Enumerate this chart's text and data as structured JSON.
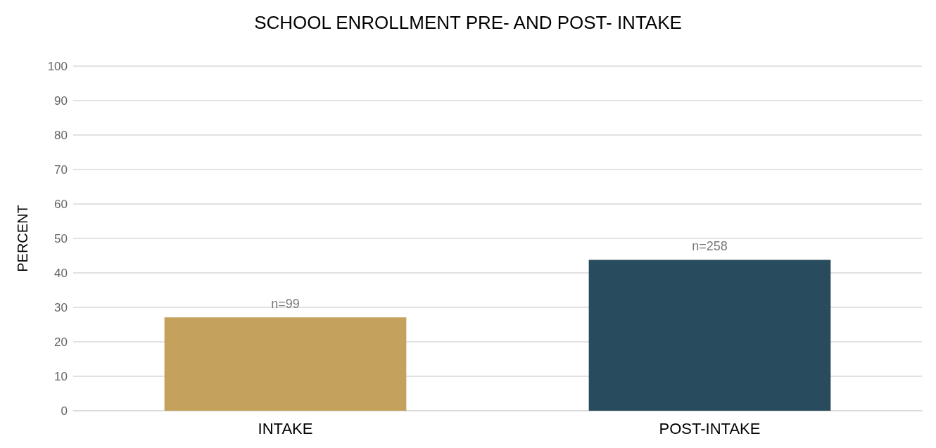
{
  "chart_data": {
    "type": "bar",
    "title": "SCHOOL ENROLLMENT PRE- AND POST- INTAKE",
    "ylabel": "PERCENT",
    "categories": [
      "INTAKE",
      "POST-INTAKE"
    ],
    "values": [
      27.1,
      43.8
    ],
    "colors": [
      "#c4a25b",
      "#284b5e"
    ],
    "annotations": [
      {
        "text": "n=99",
        "x": "INTAKE",
        "y": 27.1
      },
      {
        "text": "n=258",
        "x": "POST-INTAKE",
        "y": 43.8
      }
    ],
    "ylim": [
      0,
      100
    ],
    "yticks": [
      0,
      10,
      20,
      30,
      40,
      50,
      60,
      70,
      80,
      90,
      100
    ],
    "grid": "y"
  }
}
